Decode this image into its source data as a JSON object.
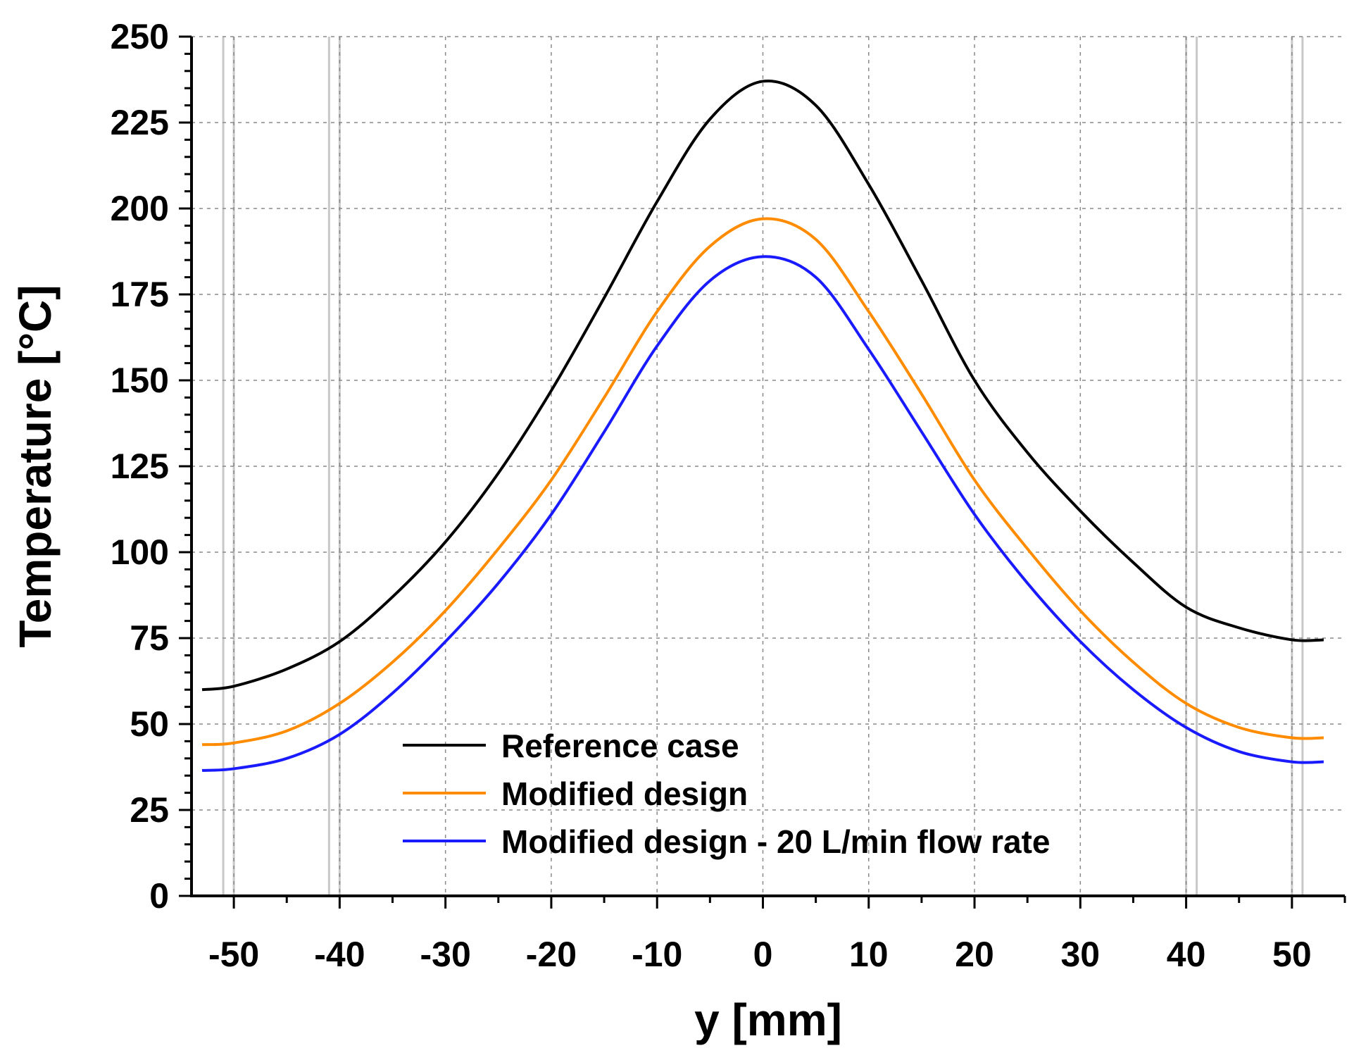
{
  "chart_data": {
    "type": "line",
    "xlabel": "y [mm]",
    "ylabel": "Temperature [°C]",
    "xlim": [
      -54,
      55
    ],
    "ylim": [
      0,
      250
    ],
    "xticks": [
      -50,
      -40,
      -30,
      -20,
      -10,
      0,
      10,
      20,
      30,
      40,
      50
    ],
    "xtick_labels": [
      "-50",
      "-40",
      "-30",
      "-20",
      "-10",
      "0",
      "10",
      "20",
      "30",
      "40",
      "50"
    ],
    "yticks": [
      0,
      25,
      50,
      75,
      100,
      125,
      150,
      175,
      200,
      225,
      250
    ],
    "ytick_labels": [
      "0",
      "25",
      "50",
      "75",
      "100",
      "125",
      "150",
      "175",
      "200",
      "225",
      "250"
    ],
    "grid": true,
    "legend_position": "bottom-center",
    "reference_lines_x": [
      -51,
      -50,
      -41,
      -40,
      40,
      41,
      50,
      51
    ],
    "series": [
      {
        "name": "Reference case",
        "color": "#000000",
        "x": [
          -53,
          -50,
          -45,
          -40,
          -35,
          -30,
          -25,
          -20,
          -15,
          -10,
          -5,
          0,
          5,
          10,
          15,
          20,
          25,
          30,
          35,
          40,
          45,
          50,
          53
        ],
        "y": [
          60,
          61,
          66,
          74,
          87,
          103,
          123,
          147,
          174,
          202,
          226,
          237,
          230,
          207,
          179,
          150,
          129,
          112,
          97,
          84,
          78,
          74.5,
          74.5
        ]
      },
      {
        "name": "Modified design",
        "color": "#ff8c00",
        "x": [
          -53,
          -50,
          -45,
          -40,
          -35,
          -30,
          -25,
          -20,
          -15,
          -10,
          -5,
          0,
          5,
          10,
          15,
          20,
          25,
          30,
          35,
          40,
          45,
          50,
          53
        ],
        "y": [
          44,
          44.5,
          48,
          56,
          68,
          83,
          101,
          121,
          145,
          170,
          189,
          197,
          191,
          170,
          146,
          121,
          101,
          83,
          68,
          56,
          49,
          46,
          46
        ]
      },
      {
        "name": "Modified design - 20 L/min flow rate",
        "color": "#1a1aff",
        "x": [
          -53,
          -50,
          -45,
          -40,
          -35,
          -30,
          -25,
          -20,
          -15,
          -10,
          -5,
          0,
          5,
          10,
          15,
          20,
          25,
          30,
          35,
          40,
          45,
          50,
          53
        ],
        "y": [
          36.5,
          37,
          40,
          47,
          59,
          74,
          91,
          111,
          135,
          160,
          179,
          186,
          180,
          159,
          135,
          111,
          91,
          74,
          60,
          49,
          42,
          39,
          39
        ]
      }
    ]
  }
}
